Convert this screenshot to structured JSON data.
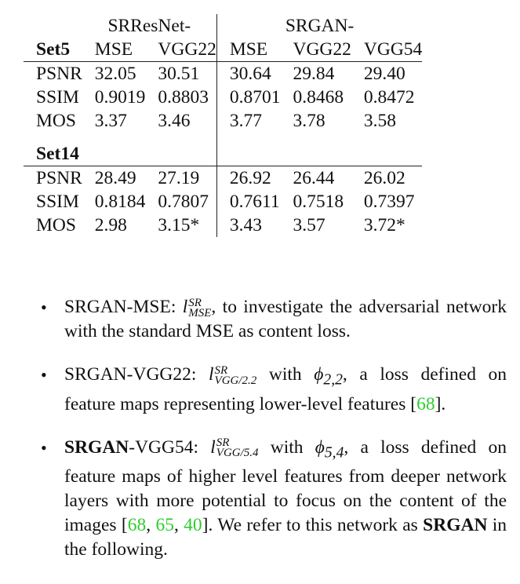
{
  "table": {
    "group_left": "SRResNet-",
    "group_right": "SRGAN-",
    "set5_label": "Set5",
    "set14_label": "Set14",
    "columns": [
      "MSE",
      "VGG22",
      "MSE",
      "VGG22",
      "VGG54"
    ],
    "set5_rows": [
      {
        "metric": "PSNR",
        "values": [
          "32.05",
          "30.51",
          "30.64",
          "29.84",
          "29.40"
        ]
      },
      {
        "metric": "SSIM",
        "values": [
          "0.9019",
          "0.8803",
          "0.8701",
          "0.8468",
          "0.8472"
        ]
      },
      {
        "metric": "MOS",
        "values": [
          "3.37",
          "3.46",
          "3.77",
          "3.78",
          "3.58"
        ]
      }
    ],
    "set14_rows": [
      {
        "metric": "PSNR",
        "values": [
          "28.49",
          "27.19",
          "26.92",
          "26.44",
          "26.02"
        ]
      },
      {
        "metric": "SSIM",
        "values": [
          "0.8184",
          "0.7807",
          "0.7611",
          "0.7518",
          "0.7397"
        ]
      },
      {
        "metric": "MOS",
        "values": [
          "2.98",
          "3.15*",
          "3.43",
          "3.57",
          "3.72*"
        ]
      }
    ]
  },
  "bullets": [
    {
      "name": "SRGAN-MSE",
      "separator": ":",
      "loss_sup": "SR",
      "loss_sub": "MSE",
      "text": ", to investigate the adversarial network with the standard MSE as content loss."
    },
    {
      "name": "SRGAN-VGG22",
      "separator": ":",
      "loss_sup": "SR",
      "loss_sub": "VGG/2.2",
      "with": " with ",
      "phi_sub": "2,2",
      "text": ", a loss defined on feature maps representing lower-level features [",
      "cite": "68",
      "end": "]."
    },
    {
      "name_bold": "SRGAN",
      "name_rest": "-VGG54",
      "separator": ":",
      "loss_sup": "SR",
      "loss_sub": "VGG/5.4",
      "with": " with ",
      "phi_sub": "5,4",
      "text": ", a loss defined on feature maps of higher level features from deeper network layers with more potential to focus on the content of the images [",
      "cites": [
        "68",
        "65",
        "40"
      ],
      "text2": "]. We refer to this network as ",
      "ref_bold": "SRGAN",
      "text3": " in the following."
    }
  ]
}
